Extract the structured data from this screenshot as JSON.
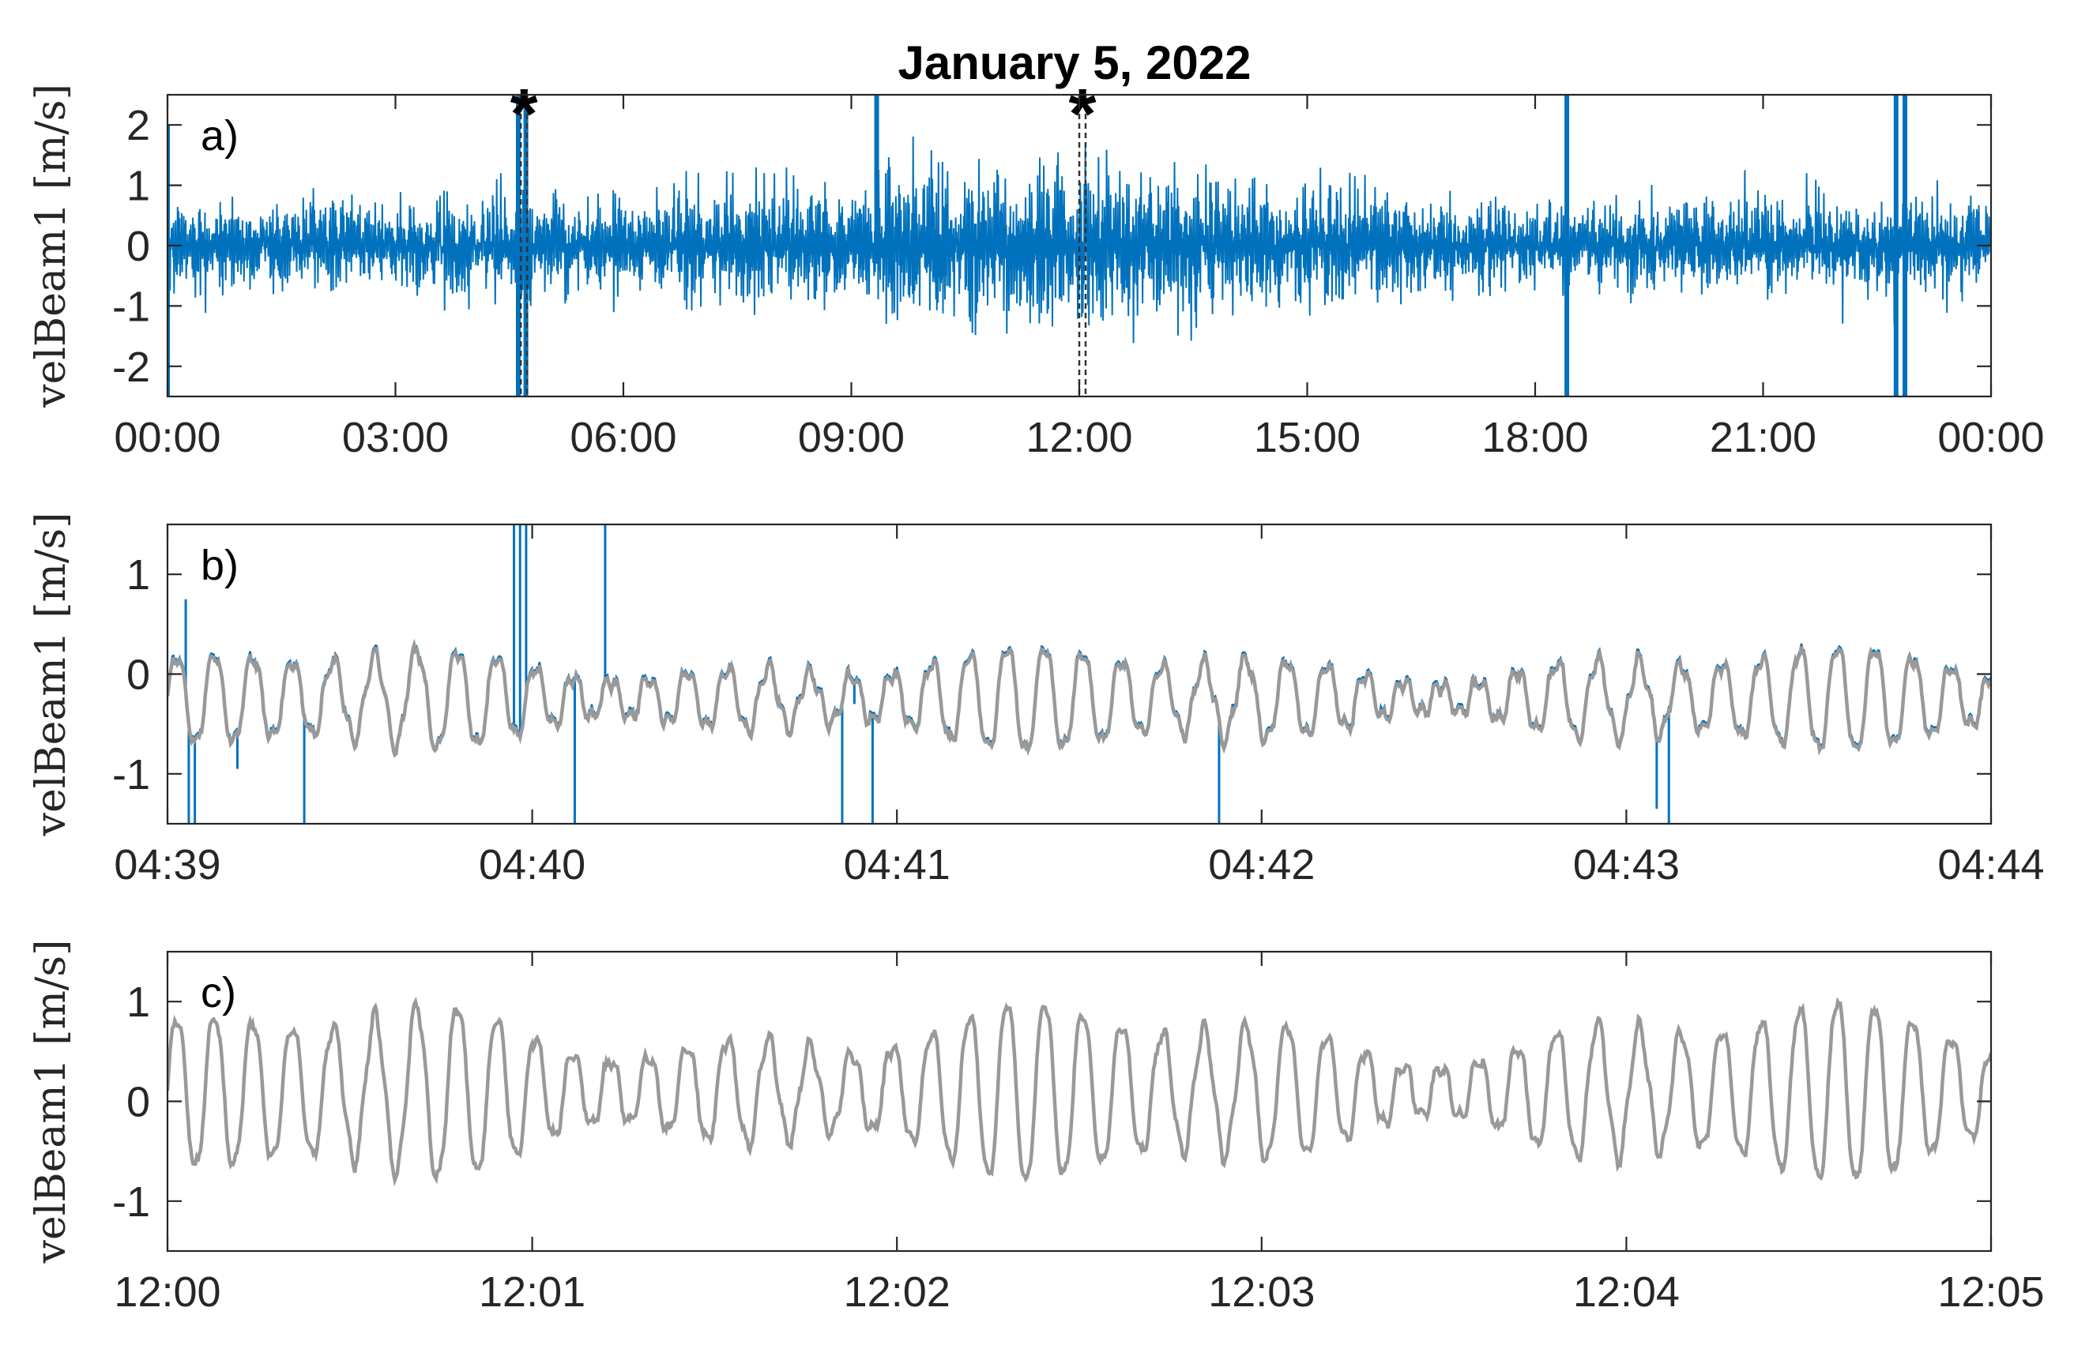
{
  "title": "January 5, 2022",
  "colors": {
    "raw": "#0072BD",
    "filtered": "#999999",
    "axes": "#262626",
    "background": "#ffffff"
  },
  "chart_data": [
    {
      "type": "line",
      "panel_label": "a)",
      "ylabel": "velBeam1 [m/s]",
      "ylim": [
        -2.5,
        2.5
      ],
      "yticks": [
        -2,
        -1,
        0,
        1,
        2
      ],
      "ytick_labels": [
        "-2",
        "-1",
        "0",
        "1",
        "2"
      ],
      "xlim": [
        "00:00",
        "24:00"
      ],
      "xtick_labels": [
        "00:00",
        "03:00",
        "06:00",
        "09:00",
        "12:00",
        "15:00",
        "18:00",
        "21:00",
        "00:00"
      ],
      "grid": false,
      "markers": [
        {
          "label": "*",
          "window": [
            "04:39",
            "04:44"
          ]
        },
        {
          "label": "*",
          "window": [
            "12:00",
            "12:05"
          ]
        }
      ],
      "series": [
        {
          "color": "#0072BD",
          "envelope_hours": [
            0,
            2,
            4,
            6,
            8,
            10,
            11,
            12,
            14,
            16,
            17,
            18,
            20,
            22,
            24
          ],
          "envelope_amplitude": [
            0.65,
            0.65,
            0.65,
            0.7,
            0.85,
            1.05,
            1.1,
            1.05,
            0.95,
            0.75,
            0.6,
            0.55,
            0.6,
            0.7,
            0.7
          ],
          "spikes": [
            {
              "time": "00:00",
              "min": -2.5,
              "max": 2.0
            },
            {
              "time": "04:37",
              "min": -2.5,
              "max": 2.5
            },
            {
              "time": "04:43",
              "min": -2.5,
              "max": 2.5
            },
            {
              "time": "09:20",
              "min": -0.3,
              "max": 2.5
            },
            {
              "time": "18:25",
              "min": -2.5,
              "max": 2.5
            },
            {
              "time": "22:45",
              "min": -2.5,
              "max": 2.5
            },
            {
              "time": "22:52",
              "min": -2.5,
              "max": 2.5
            }
          ]
        }
      ]
    },
    {
      "type": "line",
      "panel_label": "b)",
      "ylabel": "velBeam1 [m/s]",
      "ylim": [
        -1.5,
        1.5
      ],
      "yticks": [
        -1,
        0,
        1
      ],
      "ytick_labels": [
        "-1",
        "0",
        "1"
      ],
      "xlim": [
        "04:39",
        "04:44"
      ],
      "xtick_labels": [
        "04:39",
        "04:40",
        "04:41",
        "04:42",
        "04:43",
        "04:44"
      ],
      "grid": false,
      "series": [
        {
          "color": "#999999",
          "amplitude": 0.35,
          "mean": -0.25,
          "period_seconds": 6.5
        },
        {
          "color": "#0072BD",
          "spikes": [
            {
              "time_s": 3,
              "value": 0.75
            },
            {
              "time_s": 3.5,
              "value": -1.5
            },
            {
              "time_s": 4.5,
              "value": -1.5
            },
            {
              "time_s": 11.5,
              "value": -0.95
            },
            {
              "time_s": 22.5,
              "value": -1.5
            },
            {
              "time_s": 57,
              "value": 1.5
            },
            {
              "time_s": 58,
              "value": 1.5
            },
            {
              "time_s": 59,
              "value": 1.5
            },
            {
              "time_s": 67,
              "value": -1.5
            },
            {
              "time_s": 72,
              "value": 1.5
            },
            {
              "time_s": 111,
              "value": -1.5
            },
            {
              "time_s": 113,
              "value": -0.3
            },
            {
              "time_s": 116,
              "value": -1.5
            },
            {
              "time_s": 173,
              "value": -1.5
            },
            {
              "time_s": 245,
              "value": -1.35
            },
            {
              "time_s": 247,
              "value": -1.5
            }
          ]
        }
      ]
    },
    {
      "type": "line",
      "panel_label": "c)",
      "ylabel": "velBeam1 [m/s]",
      "ylim": [
        -1.5,
        1.5
      ],
      "yticks": [
        -1,
        0,
        1
      ],
      "ytick_labels": [
        "-1",
        "0",
        "1"
      ],
      "xlim": [
        "12:00",
        "12:05"
      ],
      "xtick_labels": [
        "12:00",
        "12:01",
        "12:02",
        "12:03",
        "12:04",
        "12:05"
      ],
      "grid": false,
      "series": [
        {
          "color": "#999999",
          "amplitude": 0.6,
          "mean": 0.1,
          "period_seconds": 6.5
        }
      ]
    }
  ]
}
